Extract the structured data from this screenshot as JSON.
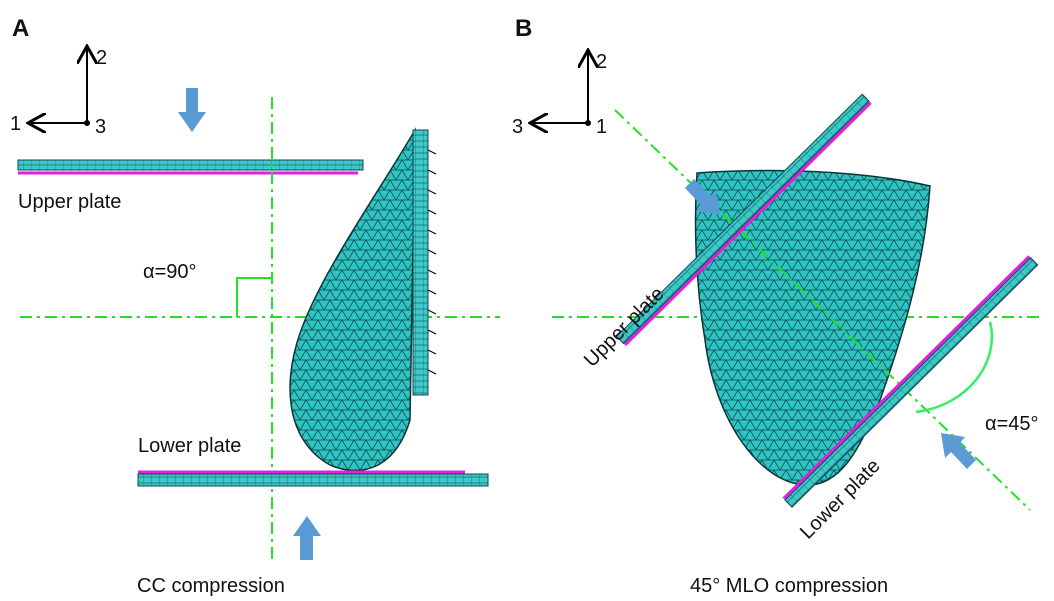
{
  "panels": [
    {
      "label": "A",
      "axes": {
        "vertical": "2",
        "horizontal": "1",
        "out": "3"
      },
      "upper_plate": "Upper plate",
      "lower_plate": "Lower plate",
      "angle": "α=90°",
      "caption": "CC compression"
    },
    {
      "label": "B",
      "axes": {
        "vertical": "2",
        "horizontal": "3",
        "out": "1"
      },
      "upper_plate": "Upper plate",
      "lower_plate": "Lower plate",
      "angle": "α=45°",
      "caption": "45° MLO compression"
    }
  ]
}
